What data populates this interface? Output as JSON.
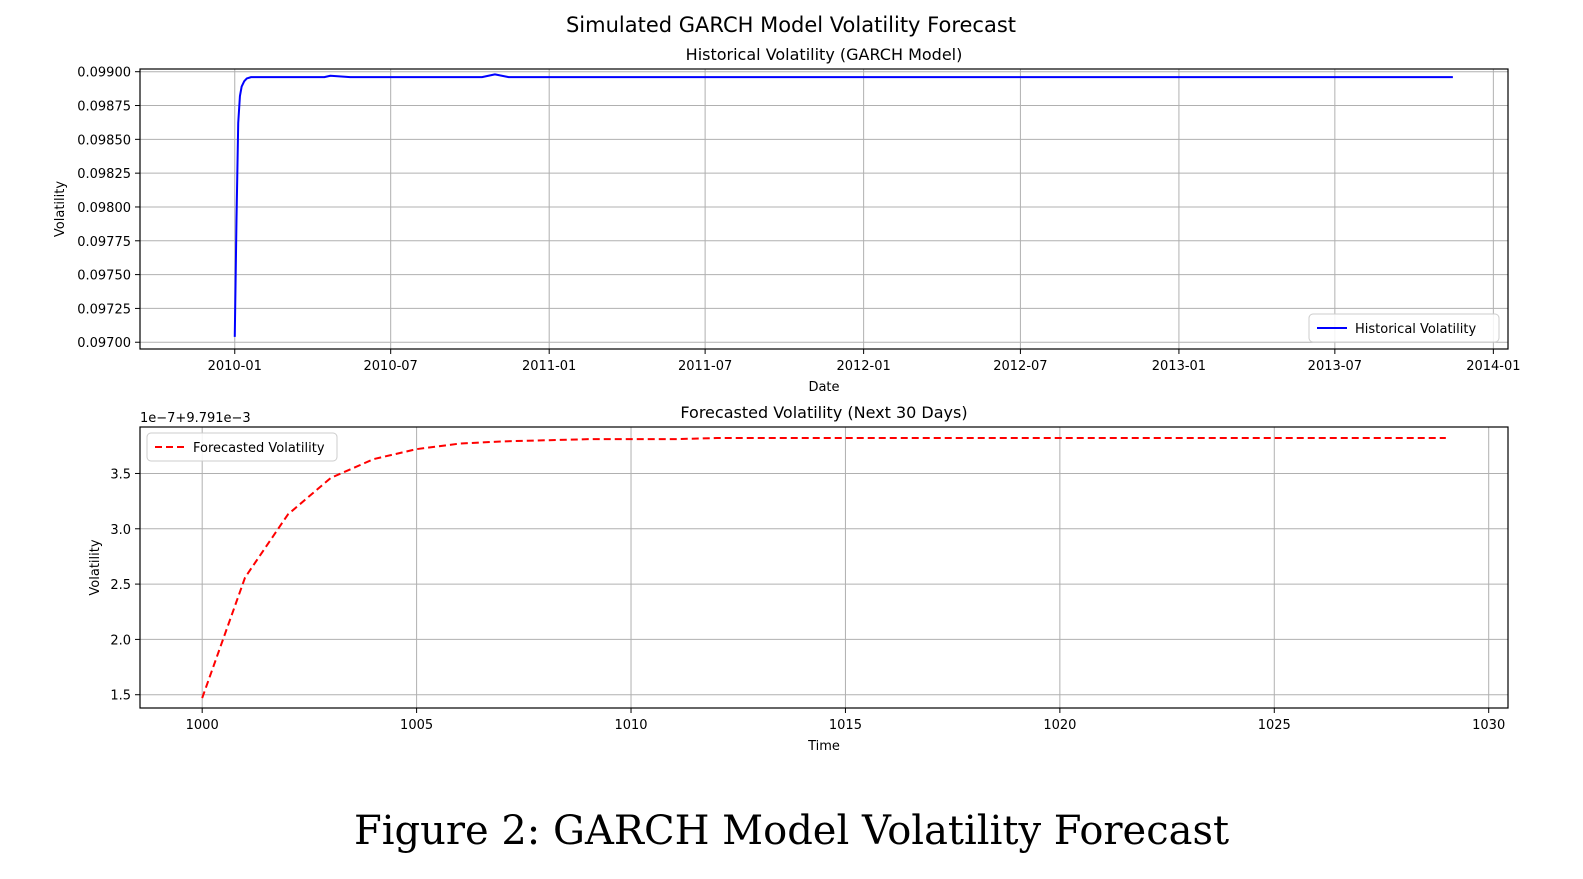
{
  "suptitle": "Simulated GARCH Model Volatility Forecast",
  "caption": "Figure 2: GARCH Model Volatility Forecast",
  "colors": {
    "historical": "#0000ff",
    "forecast": "#ff0000",
    "grid": "#b0b0b0",
    "axes": "#000000"
  },
  "chart_data": [
    {
      "type": "line",
      "title": "Historical Volatility (GARCH Model)",
      "xlabel": "Date",
      "ylabel": "Volatility",
      "x_scale": "date",
      "xlim": [
        "2009-09-13",
        "2014-01-18"
      ],
      "ylim": [
        0.09695,
        0.09902
      ],
      "xticks": [
        "2010-01",
        "2010-07",
        "2011-01",
        "2011-07",
        "2012-01",
        "2012-07",
        "2013-01",
        "2013-07",
        "2014-01"
      ],
      "yticks": [
        "0.09700",
        "0.09725",
        "0.09750",
        "0.09775",
        "0.09800",
        "0.09825",
        "0.09850",
        "0.09875",
        "0.09900"
      ],
      "grid": true,
      "legend": "lower right",
      "series": [
        {
          "name": "Historical Volatility",
          "color": "#0000ff",
          "style": "solid",
          "x": [
            "2010-01-01",
            "2010-01-03",
            "2010-01-05",
            "2010-01-07",
            "2010-01-09",
            "2010-01-12",
            "2010-01-15",
            "2010-01-20",
            "2010-01-30",
            "2010-02-15",
            "2010-03-15",
            "2010-04-15",
            "2010-04-22",
            "2010-05-15",
            "2010-06-15",
            "2010-07-15",
            "2010-08-15",
            "2010-09-01",
            "2010-09-15",
            "2010-10-15",
            "2010-10-30",
            "2010-11-15",
            "2010-12-15",
            "2011-01-01",
            "2011-01-15",
            "2011-02-15",
            "2011-03-15",
            "2011-04-15",
            "2011-05-15",
            "2011-06-15",
            "2011-07-15",
            "2011-08-15",
            "2011-09-15",
            "2011-10-15",
            "2011-11-15",
            "2011-12-15",
            "2012-01-15",
            "2012-02-15",
            "2012-03-15",
            "2012-04-15",
            "2012-05-15",
            "2012-06-15",
            "2012-07-15",
            "2012-08-15",
            "2012-09-15",
            "2012-10-15",
            "2012-11-15",
            "2012-12-15",
            "2013-01-15",
            "2013-02-15",
            "2013-03-15",
            "2013-04-15",
            "2013-05-15",
            "2013-06-15",
            "2013-07-15",
            "2013-08-15",
            "2013-09-15",
            "2013-10-15",
            "2013-11-15"
          ],
          "y": [
            0.09704,
            0.0979,
            0.09862,
            0.09882,
            0.09889,
            0.09893,
            0.09895,
            0.09896,
            0.09896,
            0.09896,
            0.09896,
            0.09896,
            0.09897,
            0.09896,
            0.09896,
            0.09896,
            0.09896,
            0.09896,
            0.09896,
            0.09896,
            0.09898,
            0.09896,
            0.09896,
            0.09896,
            0.09896,
            0.09896,
            0.09896,
            0.09896,
            0.09896,
            0.09896,
            0.09896,
            0.09896,
            0.09896,
            0.09896,
            0.09896,
            0.09896,
            0.09896,
            0.09896,
            0.09896,
            0.09896,
            0.09896,
            0.09896,
            0.09896,
            0.09896,
            0.09896,
            0.09896,
            0.09896,
            0.09896,
            0.09896,
            0.09896,
            0.09896,
            0.09896,
            0.09896,
            0.09896,
            0.09896,
            0.09896,
            0.09896,
            0.09896,
            0.09896
          ]
        }
      ]
    },
    {
      "type": "line",
      "title": "Forecasted Volatility (Next 30 Days)",
      "xlabel": "Time",
      "ylabel": "Volatility",
      "offset_text": "1e−7+9.791e−3",
      "xlim": [
        998.55,
        1030.45
      ],
      "ylim": [
        1.38,
        3.92
      ],
      "xticks": [
        "1000",
        "1005",
        "1010",
        "1015",
        "1020",
        "1025",
        "1030"
      ],
      "yticks": [
        "1.5",
        "2.0",
        "2.5",
        "3.0",
        "3.5"
      ],
      "grid": true,
      "legend": "upper left",
      "series": [
        {
          "name": "Forecasted Volatility",
          "color": "#ff0000",
          "style": "dashed",
          "x": [
            1000,
            1001,
            1002,
            1003,
            1004,
            1005,
            1006,
            1007,
            1008,
            1009,
            1010,
            1011,
            1012,
            1013,
            1014,
            1015,
            1016,
            1017,
            1018,
            1019,
            1020,
            1021,
            1022,
            1023,
            1024,
            1025,
            1026,
            1027,
            1028,
            1029
          ],
          "y": [
            1.47,
            2.56,
            3.13,
            3.46,
            3.63,
            3.72,
            3.77,
            3.79,
            3.8,
            3.81,
            3.81,
            3.81,
            3.82,
            3.82,
            3.82,
            3.82,
            3.82,
            3.82,
            3.82,
            3.82,
            3.82,
            3.82,
            3.82,
            3.82,
            3.82,
            3.82,
            3.82,
            3.82,
            3.82,
            3.82
          ]
        }
      ]
    }
  ]
}
